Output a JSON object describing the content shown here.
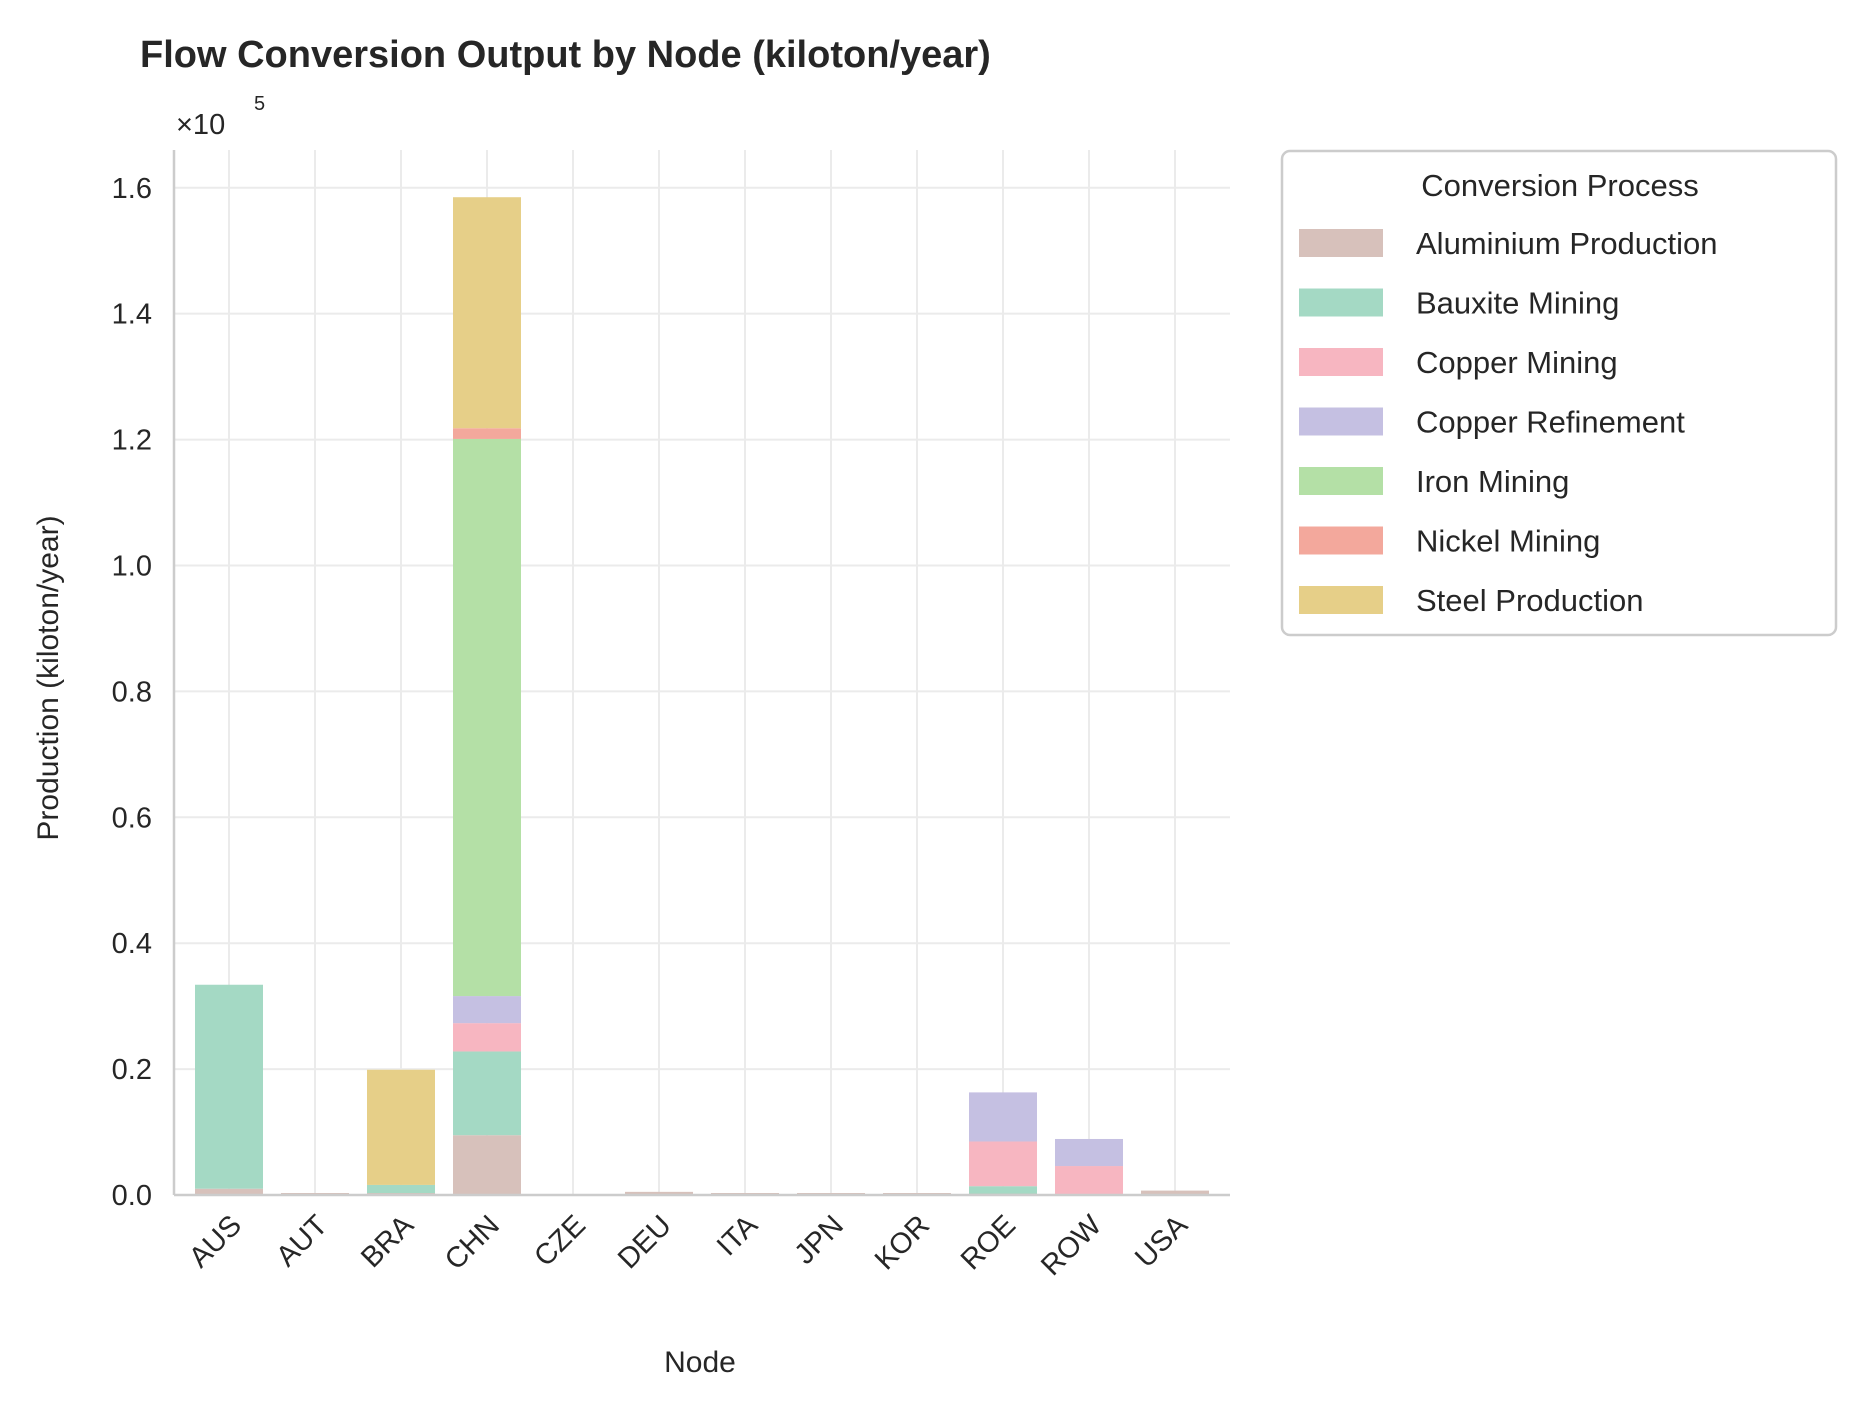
{
  "chart_data": {
    "type": "bar",
    "stacked": true,
    "title": "Flow Conversion Output by Node (kiloton/year)",
    "xlabel": "Node",
    "ylabel": "Production (kiloton/year)",
    "multiplier_label": "×10",
    "multiplier_exponent": "5",
    "ylim": [
      0,
      166000
    ],
    "yticks": [
      0,
      20000,
      40000,
      60000,
      80000,
      100000,
      120000,
      140000,
      160000
    ],
    "ytick_labels": [
      "0.0",
      "0.2",
      "0.4",
      "0.6",
      "0.8",
      "1.0",
      "1.2",
      "1.4",
      "1.6"
    ],
    "grid": true,
    "legend_title": "Conversion Process",
    "legend_placement": "outside-right",
    "categories": [
      "AUS",
      "AUT",
      "BRA",
      "CHN",
      "CZE",
      "DEU",
      "ITA",
      "JPN",
      "KOR",
      "ROE",
      "ROW",
      "USA"
    ],
    "series": [
      {
        "name": "Aluminium Production",
        "color": "#d7c1bb",
        "values": [
          1000,
          100,
          300,
          9500,
          0,
          500,
          150,
          200,
          200,
          200,
          100,
          700
        ]
      },
      {
        "name": "Bauxite Mining",
        "color": "#a4d9c4",
        "values": [
          32400,
          0,
          1300,
          13300,
          0,
          0,
          0,
          0,
          0,
          1200,
          0,
          0
        ]
      },
      {
        "name": "Copper Mining",
        "color": "#f7b6c1",
        "values": [
          0,
          0,
          0,
          4500,
          0,
          0,
          0,
          0,
          0,
          7100,
          4500,
          0
        ]
      },
      {
        "name": "Copper Refinement",
        "color": "#c5c0e2",
        "values": [
          0,
          0,
          0,
          4300,
          0,
          0,
          0,
          0,
          0,
          7800,
          4300,
          0
        ]
      },
      {
        "name": "Iron Mining",
        "color": "#b4e0a6",
        "values": [
          0,
          0,
          0,
          88500,
          0,
          0,
          0,
          0,
          0,
          0,
          0,
          0
        ]
      },
      {
        "name": "Nickel Mining",
        "color": "#f3a89c",
        "values": [
          0,
          0,
          0,
          1700,
          0,
          0,
          0,
          0,
          0,
          0,
          0,
          0
        ]
      },
      {
        "name": "Steel Production",
        "color": "#e6cf88",
        "values": [
          0,
          0,
          18300,
          36700,
          0,
          0,
          0,
          0,
          0,
          0,
          0,
          0
        ]
      }
    ]
  }
}
